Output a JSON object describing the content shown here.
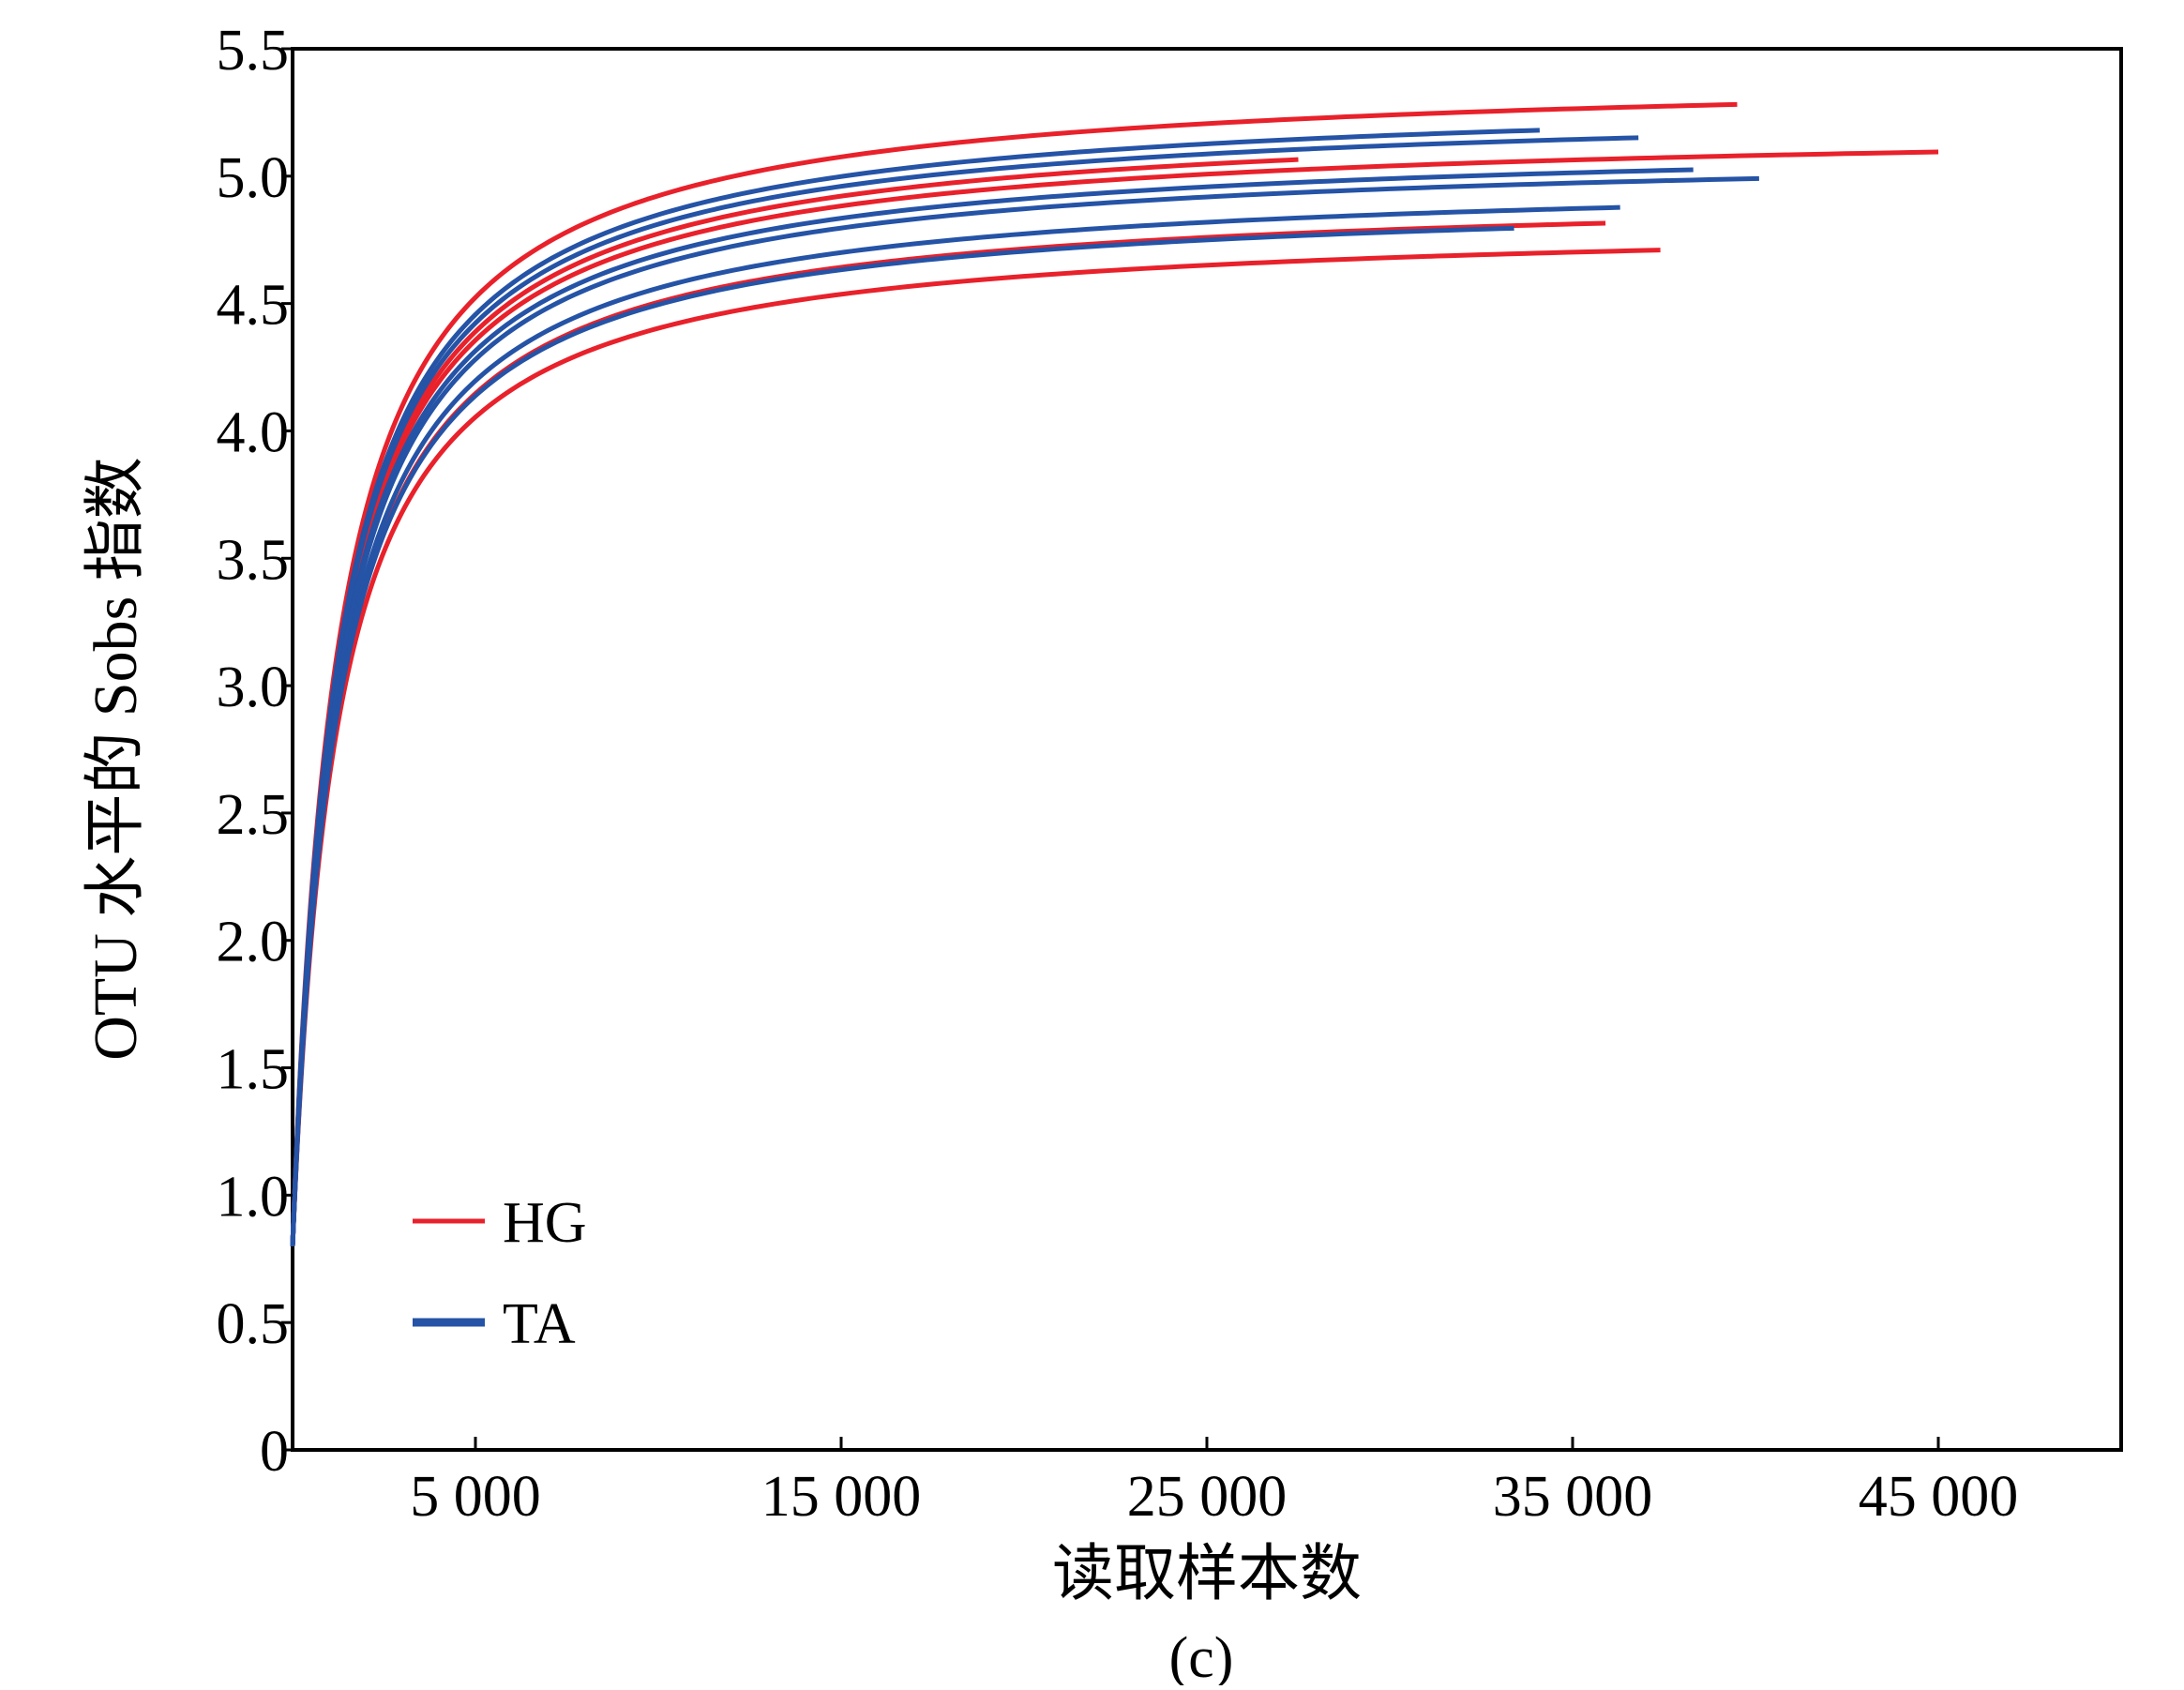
{
  "chart_data": {
    "type": "line",
    "title": "",
    "panel_label": "(c)",
    "xlabel": "读取样本数",
    "ylabel": "OTU 水平的 Sobs 指数",
    "xlim": [
      0,
      50000
    ],
    "ylim": [
      0,
      5.5
    ],
    "x_ticks": [
      5000,
      15000,
      25000,
      35000,
      45000
    ],
    "x_tick_labels": [
      "5 000",
      "15 000",
      "25 000",
      "35 000",
      "45 000"
    ],
    "y_ticks": [
      0,
      0.5,
      1.0,
      1.5,
      2.0,
      2.5,
      3.0,
      3.5,
      4.0,
      4.5,
      5.0,
      5.5
    ],
    "y_tick_labels": [
      "0",
      "0.5",
      "1.0",
      "1.5",
      "2.0",
      "2.5",
      "3.0",
      "3.5",
      "4.0",
      "4.5",
      "5.0",
      "5.5"
    ],
    "grid": false,
    "legend": {
      "position": "bottom-left",
      "entries": [
        {
          "label": "HG",
          "color": "#e8212b"
        },
        {
          "label": "TA",
          "color": "#2553a6"
        }
      ]
    },
    "series": [
      {
        "group": "HG",
        "color": "#e8212b",
        "end_x": 39500,
        "plateau": 5.24
      },
      {
        "group": "HG",
        "color": "#e8212b",
        "end_x": 45000,
        "plateau": 5.04
      },
      {
        "group": "HG",
        "color": "#e8212b",
        "end_x": 27500,
        "plateau": 5.08
      },
      {
        "group": "HG",
        "color": "#e8212b",
        "end_x": 35900,
        "plateau": 4.79
      },
      {
        "group": "HG",
        "color": "#e8212b",
        "end_x": 37400,
        "plateau": 4.68
      },
      {
        "group": "TA",
        "color": "#2553a6",
        "end_x": 34100,
        "plateau": 5.16
      },
      {
        "group": "TA",
        "color": "#2553a6",
        "end_x": 36800,
        "plateau": 5.12
      },
      {
        "group": "TA",
        "color": "#2553a6",
        "end_x": 38300,
        "plateau": 4.99
      },
      {
        "group": "TA",
        "color": "#2553a6",
        "end_x": 40100,
        "plateau": 4.95
      },
      {
        "group": "TA",
        "color": "#2553a6",
        "end_x": 36300,
        "plateau": 4.85
      },
      {
        "group": "TA",
        "color": "#2553a6",
        "end_x": 33400,
        "plateau": 4.78
      }
    ]
  }
}
